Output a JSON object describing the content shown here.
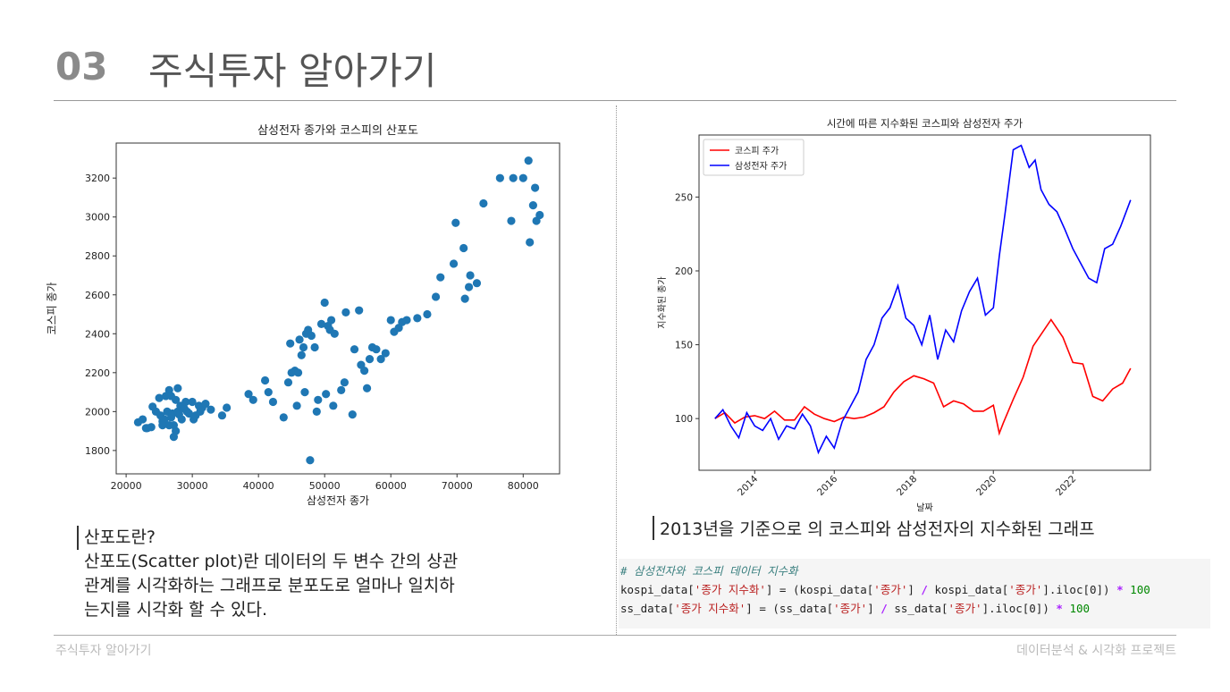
{
  "header": {
    "number": "03",
    "title": "주식투자 알아가기"
  },
  "footer": {
    "left": "주식투자 알아가기",
    "right": "데이터분석 & 시각화 프로젝트"
  },
  "left_caption": {
    "heading": "산포도란?",
    "lines": [
      "산포도(Scatter plot)란 데이터의 두 변수 간의 상관",
      "관계를 시각화하는 그래프로 분포도로 얼마나 일치하",
      "는지를 시각화 할 수 있다."
    ]
  },
  "right_caption": "2013년을 기준으로 의 코스피와 삼성전자의 지수화된 그래프",
  "code": {
    "comment": "# 삼성전자와 코스피 데이터 지수화",
    "l1_a": "kospi_data[",
    "l1_s1": "'종가 지수화'",
    "l1_b": "] = (kospi_data[",
    "l1_s2": "'종가'",
    "l1_c": "] ",
    "l1_op1": "/",
    "l1_d": " kospi_data[",
    "l1_s3": "'종가'",
    "l1_e": "].iloc[0]) ",
    "l1_op2": "*",
    "l1_n": " 100",
    "l2_a": "ss_data[",
    "l2_s1": "'종가 지수화'",
    "l2_b": "] = (ss_data[",
    "l2_s2": "'종가'",
    "l2_c": "] ",
    "l2_op1": "/",
    "l2_d": " ss_data[",
    "l2_s3": "'종가'",
    "l2_e": "].iloc[0]) ",
    "l2_op2": "*",
    "l2_n": " 100"
  },
  "chart_data": [
    {
      "type": "scatter",
      "title": "삼성전자 종가와 코스피의 산포도",
      "xlabel": "삼성전자 종가",
      "ylabel": "코스피 종가",
      "xlim": [
        18500,
        85500
      ],
      "ylim": [
        1680,
        3380
      ],
      "xticks": [
        20000,
        30000,
        40000,
        50000,
        60000,
        70000,
        80000
      ],
      "yticks": [
        1800,
        2000,
        2200,
        2400,
        2600,
        2800,
        3000,
        3200
      ],
      "color": "#1f77b4",
      "points": [
        [
          21800,
          1945
        ],
        [
          22500,
          1960
        ],
        [
          23000,
          1915
        ],
        [
          23800,
          1920
        ],
        [
          24000,
          2025
        ],
        [
          24500,
          2000
        ],
        [
          25000,
          2070
        ],
        [
          25200,
          1980
        ],
        [
          25500,
          1950
        ],
        [
          25800,
          1960
        ],
        [
          26000,
          2080
        ],
        [
          26200,
          2000
        ],
        [
          26500,
          1930
        ],
        [
          26500,
          2110
        ],
        [
          26800,
          1970
        ],
        [
          27000,
          1990
        ],
        [
          27200,
          1930
        ],
        [
          27500,
          2060
        ],
        [
          27500,
          1900
        ],
        [
          27800,
          2000
        ],
        [
          28000,
          1985
        ],
        [
          28200,
          2030
        ],
        [
          28400,
          1960
        ],
        [
          28800,
          2015
        ],
        [
          29000,
          2050
        ],
        [
          29200,
          2000
        ],
        [
          29500,
          1990
        ],
        [
          30000,
          2050
        ],
        [
          30200,
          1960
        ],
        [
          30500,
          1980
        ],
        [
          31000,
          2030
        ],
        [
          31200,
          2000
        ],
        [
          31500,
          2020
        ],
        [
          32000,
          2040
        ],
        [
          32800,
          2010
        ],
        [
          34500,
          1980
        ],
        [
          35200,
          2020
        ],
        [
          27200,
          1870
        ],
        [
          26800,
          2080
        ],
        [
          27800,
          2120
        ],
        [
          23200,
          1915
        ],
        [
          25500,
          1930
        ],
        [
          38500,
          2090
        ],
        [
          39200,
          2060
        ],
        [
          41000,
          2160
        ],
        [
          41500,
          2100
        ],
        [
          42200,
          2050
        ],
        [
          43800,
          1970
        ],
        [
          44500,
          2150
        ],
        [
          44800,
          2350
        ],
        [
          45000,
          2200
        ],
        [
          45500,
          2210
        ],
        [
          45800,
          2030
        ],
        [
          46000,
          2200
        ],
        [
          46200,
          2370
        ],
        [
          46500,
          2290
        ],
        [
          46800,
          2330
        ],
        [
          47000,
          2100
        ],
        [
          47200,
          2400
        ],
        [
          47500,
          2420
        ],
        [
          47800,
          1750
        ],
        [
          48000,
          2390
        ],
        [
          48500,
          2330
        ],
        [
          48800,
          2000
        ],
        [
          49000,
          2060
        ],
        [
          49500,
          2450
        ],
        [
          50000,
          2560
        ],
        [
          50200,
          2090
        ],
        [
          50500,
          2440
        ],
        [
          50800,
          2420
        ],
        [
          51000,
          2470
        ],
        [
          51300,
          2030
        ],
        [
          51500,
          2400
        ],
        [
          52500,
          2110
        ],
        [
          53000,
          2150
        ],
        [
          53200,
          2510
        ],
        [
          54200,
          1985
        ],
        [
          54500,
          2320
        ],
        [
          55200,
          2520
        ],
        [
          55500,
          2240
        ],
        [
          56000,
          2210
        ],
        [
          56400,
          2120
        ],
        [
          56800,
          2270
        ],
        [
          57200,
          2330
        ],
        [
          57800,
          2320
        ],
        [
          58500,
          2270
        ],
        [
          59200,
          2300
        ],
        [
          60000,
          2470
        ],
        [
          60500,
          2410
        ],
        [
          61200,
          2430
        ],
        [
          61700,
          2460
        ],
        [
          62400,
          2470
        ],
        [
          64000,
          2480
        ],
        [
          65500,
          2500
        ],
        [
          66800,
          2590
        ],
        [
          67500,
          2690
        ],
        [
          69500,
          2760
        ],
        [
          69800,
          2970
        ],
        [
          71000,
          2840
        ],
        [
          71200,
          2580
        ],
        [
          71800,
          2640
        ],
        [
          72000,
          2700
        ],
        [
          73000,
          2660
        ],
        [
          74000,
          3070
        ],
        [
          76500,
          3200
        ],
        [
          78200,
          2980
        ],
        [
          78500,
          3200
        ],
        [
          80000,
          3200
        ],
        [
          80800,
          3290
        ],
        [
          81000,
          2870
        ],
        [
          81500,
          3060
        ],
        [
          81800,
          3150
        ],
        [
          82000,
          2980
        ],
        [
          82500,
          3010
        ]
      ]
    },
    {
      "type": "line",
      "title": "시간에 따른 지수화된 코스피와 삼성전자 주가",
      "xlabel": "날짜",
      "ylabel": "지수화된 종가",
      "xlim": [
        2012.6,
        2023.95
      ],
      "ylim": [
        65,
        292
      ],
      "xticks": [
        2014,
        2016,
        2018,
        2020,
        2022
      ],
      "yticks": [
        100,
        150,
        200,
        250
      ],
      "legend_position": "upper-left",
      "series": [
        {
          "name": "코스피 주가",
          "color": "#ff0000",
          "x": [
            2013.0,
            2013.25,
            2013.5,
            2013.75,
            2014.0,
            2014.25,
            2014.5,
            2014.75,
            2015.0,
            2015.25,
            2015.5,
            2015.75,
            2016.0,
            2016.25,
            2016.5,
            2016.75,
            2017.0,
            2017.25,
            2017.5,
            2017.75,
            2018.0,
            2018.25,
            2018.5,
            2018.75,
            2019.0,
            2019.25,
            2019.5,
            2019.75,
            2020.0,
            2020.15,
            2020.25,
            2020.5,
            2020.75,
            2021.0,
            2021.25,
            2021.45,
            2021.75,
            2022.0,
            2022.25,
            2022.5,
            2022.75,
            2023.0,
            2023.25,
            2023.45
          ],
          "y": [
            100,
            104,
            97,
            101,
            102,
            100,
            105,
            99,
            99,
            108,
            103,
            100,
            98,
            101,
            100,
            101,
            104,
            108,
            118,
            125,
            129,
            127,
            124,
            108,
            112,
            110,
            105,
            105,
            109,
            90,
            97,
            113,
            128,
            149,
            159,
            167,
            155,
            138,
            137,
            115,
            112,
            120,
            124,
            134
          ]
        },
        {
          "name": "삼성전자 주가",
          "color": "#0000ff",
          "x": [
            2013.0,
            2013.2,
            2013.4,
            2013.6,
            2013.8,
            2014.0,
            2014.2,
            2014.4,
            2014.6,
            2014.8,
            2015.0,
            2015.2,
            2015.4,
            2015.6,
            2015.8,
            2016.0,
            2016.2,
            2016.4,
            2016.6,
            2016.8,
            2017.0,
            2017.2,
            2017.4,
            2017.6,
            2017.8,
            2018.0,
            2018.2,
            2018.4,
            2018.6,
            2018.8,
            2019.0,
            2019.2,
            2019.4,
            2019.6,
            2019.8,
            2020.0,
            2020.15,
            2020.3,
            2020.5,
            2020.7,
            2020.9,
            2021.05,
            2021.2,
            2021.4,
            2021.6,
            2021.8,
            2022.0,
            2022.2,
            2022.4,
            2022.6,
            2022.8,
            2023.0,
            2023.2,
            2023.45
          ],
          "y": [
            100,
            106,
            95,
            87,
            104,
            95,
            92,
            100,
            86,
            95,
            93,
            103,
            95,
            77,
            88,
            80,
            98,
            108,
            118,
            140,
            150,
            168,
            175,
            190,
            168,
            163,
            150,
            170,
            140,
            160,
            152,
            173,
            186,
            195,
            170,
            175,
            210,
            240,
            282,
            285,
            270,
            275,
            255,
            245,
            240,
            228,
            215,
            205,
            195,
            192,
            215,
            218,
            230,
            248
          ]
        }
      ]
    }
  ]
}
